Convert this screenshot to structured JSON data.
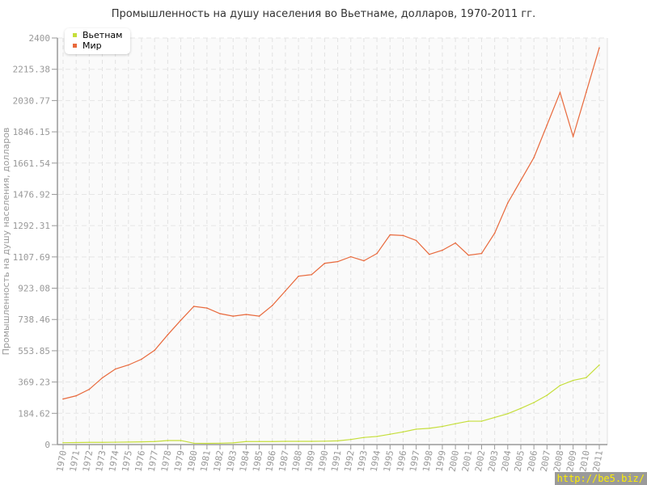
{
  "chart_data": {
    "type": "line",
    "title": "Промышленность на душу населения во Вьетнаме, долларов, 1970-2011 гг.",
    "xlabel": "",
    "ylabel": "Промышленность на душу населения, долларов",
    "ylim": [
      0,
      2400
    ],
    "y_ticks": [
      "0",
      "184.62",
      "369.23",
      "553.85",
      "738.46",
      "923.08",
      "1107.69",
      "1292.31",
      "1476.92",
      "1661.54",
      "1846.15",
      "2030.77",
      "2215.38",
      "2400"
    ],
    "grid": true,
    "legend_position": "top-left",
    "x": [
      1970,
      1971,
      1972,
      1973,
      1974,
      1975,
      1976,
      1977,
      1978,
      1979,
      1980,
      1981,
      1982,
      1983,
      1984,
      1985,
      1986,
      1987,
      1988,
      1989,
      1990,
      1991,
      1992,
      1993,
      1994,
      1995,
      1996,
      1997,
      1998,
      1999,
      2000,
      2001,
      2002,
      2003,
      2004,
      2005,
      2006,
      2007,
      2008,
      2009,
      2010,
      2011
    ],
    "series": [
      {
        "name": "Вьетнам",
        "color": "#c5de3a",
        "values": [
          11,
          12,
          13,
          13,
          14,
          15,
          16,
          18,
          24,
          24,
          8,
          7,
          8,
          10,
          18,
          18,
          18,
          19,
          19,
          19,
          20,
          22,
          30,
          42,
          48,
          61,
          75,
          91,
          96,
          107,
          123,
          138,
          138,
          160,
          182,
          214,
          248,
          291,
          349,
          379,
          395,
          470
        ]
      },
      {
        "name": "Мир",
        "color": "#e8693c",
        "values": [
          269,
          288,
          326,
          394,
          446,
          470,
          504,
          557,
          648,
          734,
          816,
          806,
          773,
          758,
          768,
          758,
          821,
          907,
          994,
          1003,
          1070,
          1080,
          1109,
          1085,
          1128,
          1238,
          1234,
          1205,
          1123,
          1147,
          1190,
          1118,
          1128,
          1248,
          1426,
          1560,
          1694,
          1886,
          2078,
          1819,
          2080,
          2342
        ]
      }
    ]
  },
  "watermark": "http://be5.biz/"
}
